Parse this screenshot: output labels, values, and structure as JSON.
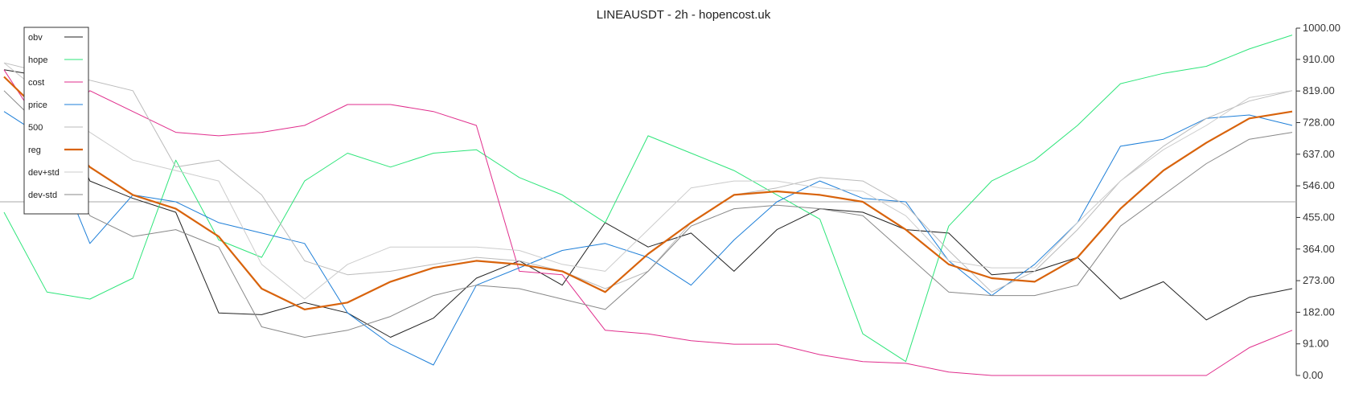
{
  "chart_data": {
    "type": "line",
    "title": "LINEAUSDT - 2h - hopencost.uk",
    "xlabel": "",
    "ylabel": "",
    "ylim": [
      0,
      1000
    ],
    "y_ticks": [
      "0.00",
      "91.00",
      "182.00",
      "273.00",
      "364.00",
      "455.00",
      "546.00",
      "637.00",
      "728.00",
      "819.00",
      "910.00",
      "1000.00"
    ],
    "y_axis_side": "right",
    "reference_line": 500,
    "x": [
      0,
      10,
      20,
      30,
      40,
      50,
      60,
      70,
      80,
      90,
      100,
      110,
      120,
      130,
      140,
      150,
      160,
      170,
      180,
      190,
      200,
      210,
      220,
      230,
      240,
      250,
      260,
      270,
      280,
      290,
      300
    ],
    "series": [
      {
        "name": "obv",
        "color": "#222222",
        "width": 1,
        "values": [
          880,
          860,
          560,
          510,
          470,
          180,
          175,
          210,
          180,
          110,
          165,
          280,
          330,
          260,
          440,
          370,
          410,
          300,
          420,
          480,
          470,
          420,
          410,
          290,
          300,
          340,
          220,
          270,
          160,
          225,
          250
        ]
      },
      {
        "name": "hope",
        "color": "#2ee57a",
        "width": 1,
        "values": [
          470,
          240,
          220,
          280,
          620,
          390,
          340,
          560,
          640,
          600,
          640,
          650,
          570,
          520,
          440,
          690,
          640,
          590,
          520,
          450,
          120,
          40,
          430,
          560,
          620,
          720,
          840,
          870,
          890,
          940,
          980
        ]
      },
      {
        "name": "cost",
        "color": "#e02d8c",
        "width": 1,
        "values": [
          880,
          690,
          820,
          760,
          700,
          690,
          700,
          720,
          780,
          780,
          760,
          720,
          300,
          290,
          130,
          120,
          100,
          90,
          90,
          60,
          40,
          35,
          10,
          0,
          0,
          0,
          0,
          0,
          0,
          80,
          130
        ]
      },
      {
        "name": "price",
        "color": "#1e7fd8",
        "width": 1,
        "values": [
          760,
          680,
          380,
          520,
          500,
          440,
          410,
          380,
          180,
          90,
          30,
          260,
          310,
          360,
          380,
          340,
          260,
          390,
          500,
          560,
          510,
          500,
          330,
          230,
          320,
          440,
          660,
          680,
          740,
          750,
          720
        ]
      },
      {
        "name": "500",
        "color": "#bbbbbb",
        "width": 1,
        "values": [
          900,
          870,
          850,
          820,
          600,
          620,
          520,
          330,
          290,
          300,
          320,
          340,
          330,
          300,
          250,
          300,
          440,
          520,
          540,
          570,
          560,
          490,
          360,
          240,
          300,
          420,
          560,
          660,
          740,
          790,
          820
        ]
      },
      {
        "name": "reg",
        "color": "#d8630c",
        "width": 2.2,
        "values": [
          860,
          740,
          600,
          520,
          480,
          400,
          250,
          190,
          210,
          270,
          310,
          330,
          320,
          300,
          240,
          350,
          440,
          520,
          530,
          520,
          500,
          420,
          320,
          280,
          270,
          340,
          480,
          590,
          670,
          740,
          760
        ]
      },
      {
        "name": "dev+std",
        "color": "#cccccc",
        "width": 1,
        "values": [
          900,
          800,
          700,
          620,
          590,
          560,
          320,
          220,
          320,
          370,
          370,
          370,
          360,
          320,
          300,
          420,
          540,
          560,
          560,
          540,
          530,
          460,
          330,
          310,
          310,
          440,
          560,
          650,
          720,
          800,
          820
        ]
      },
      {
        "name": "dev-std",
        "color": "#888888",
        "width": 1,
        "values": [
          820,
          700,
          460,
          400,
          420,
          370,
          140,
          110,
          130,
          170,
          230,
          260,
          250,
          220,
          190,
          300,
          430,
          480,
          490,
          480,
          460,
          350,
          240,
          230,
          230,
          260,
          430,
          520,
          610,
          680,
          700
        ]
      }
    ],
    "legend": {
      "placement": "top-left"
    },
    "grid": false
  }
}
